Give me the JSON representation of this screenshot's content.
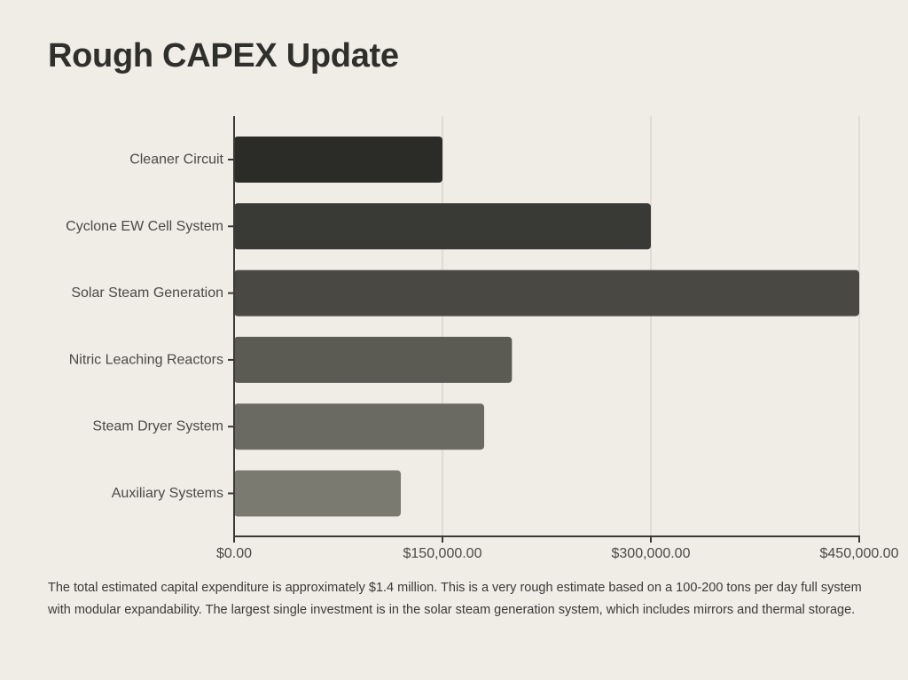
{
  "page": {
    "title": "Rough CAPEX Update",
    "caption": "The total estimated capital expenditure is approximately $1.4 million. This is a very rough estimate based on a 100-200 tons per day full system with modular expandability. The largest single investment is in the solar steam generation system, which includes mirrors and thermal storage."
  },
  "chart_data": {
    "type": "bar",
    "orientation": "horizontal",
    "title": "",
    "xlabel": "",
    "ylabel": "",
    "categories": [
      "Cleaner Circuit",
      "Cyclone EW Cell System",
      "Solar Steam Generation",
      "Nitric Leaching Reactors",
      "Steam Dryer System",
      "Auxiliary Systems"
    ],
    "values": [
      150000,
      300000,
      450000,
      200000,
      180000,
      120000
    ],
    "xlim": [
      0,
      450000
    ],
    "ticks": [
      0,
      150000,
      300000,
      450000
    ],
    "tick_labels": [
      "$0.00",
      "$150,000.00",
      "$300,000.00",
      "$450,000.00"
    ],
    "grid": "vertical",
    "legend": "none",
    "bar_colors": [
      "#2b2b27",
      "#393935",
      "#494842",
      "#5b5a53",
      "#6a6962",
      "#7b7a71"
    ],
    "axis_color": "#3a3a37",
    "grid_color": "#cfcbc4"
  }
}
